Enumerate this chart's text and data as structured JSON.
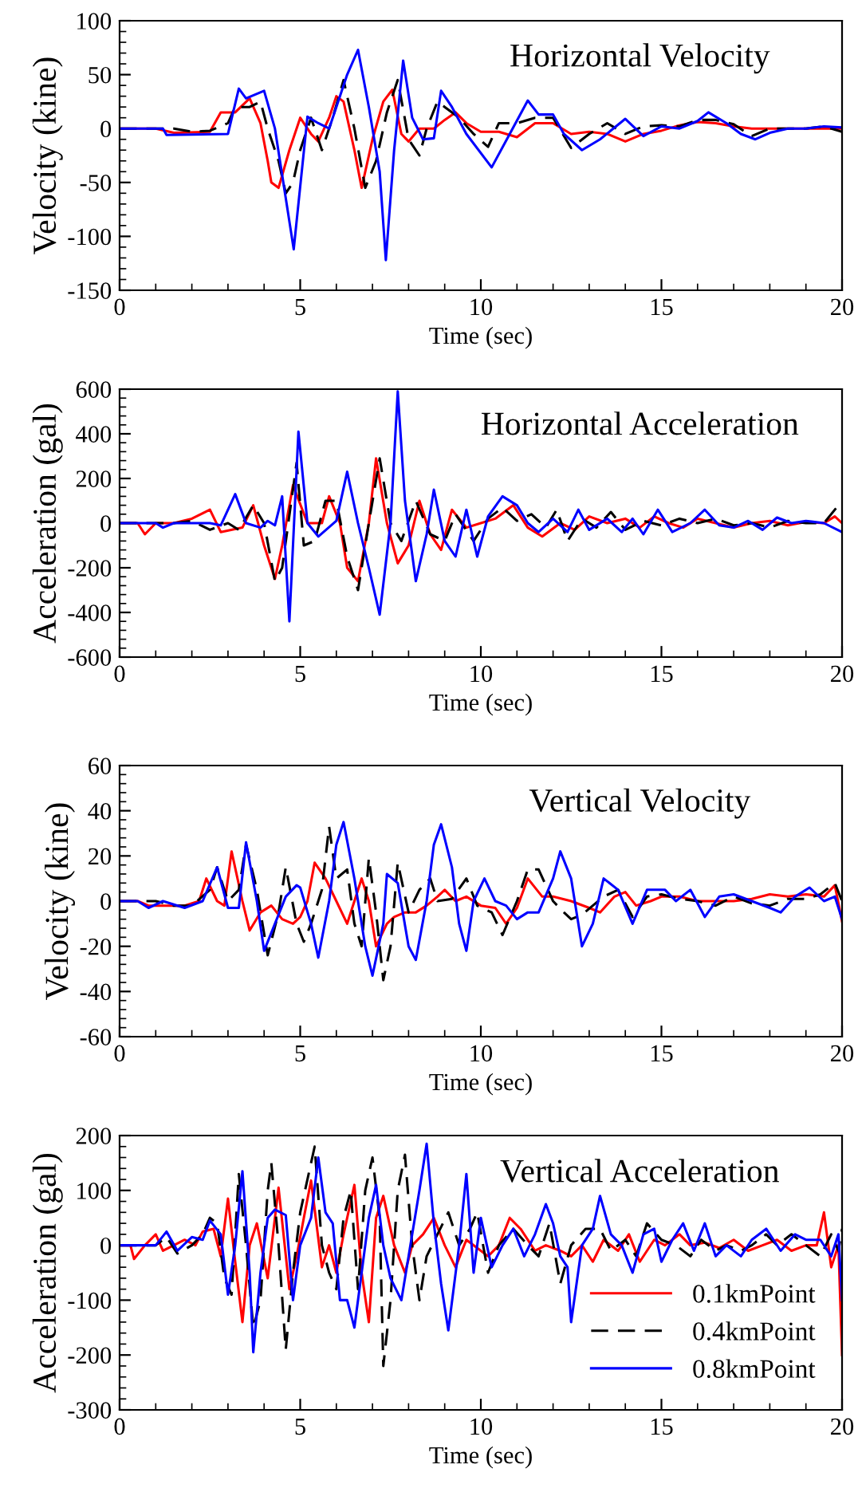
{
  "chart_data": [
    {
      "type": "line",
      "title": "Horizontal Velocity",
      "xlabel": "Time (sec)",
      "ylabel": "Velocity (kine)",
      "xlim": [
        0,
        20
      ],
      "ylim": [
        -150,
        100
      ],
      "xticks": [
        0,
        5,
        10,
        15,
        20
      ],
      "yticks": [
        -150,
        -100,
        -50,
        0,
        50,
        100
      ],
      "legend": false,
      "series": [
        {
          "color": "#ff0000",
          "line_style": "solid",
          "x": [
            0,
            1,
            1.5,
            2.5,
            2.8,
            3.2,
            3.6,
            3.9,
            4.1,
            4.2,
            4.4,
            4.7,
            5.0,
            5.3,
            5.5,
            5.8,
            6.0,
            6.2,
            6.5,
            6.7,
            7.0,
            7.3,
            7.55,
            7.8,
            8.0,
            8.3,
            8.7,
            9.0,
            9.3,
            9.6,
            10,
            10.5,
            11.0,
            11.5,
            12,
            12.5,
            13.0,
            13.5,
            14,
            14.5,
            15,
            15.5,
            16,
            16.5,
            17,
            17.5,
            18,
            19,
            20
          ],
          "values": [
            0,
            0,
            -4,
            -3,
            15,
            15,
            28,
            5,
            -30,
            -50,
            -55,
            -20,
            10,
            -5,
            -12,
            10,
            30,
            25,
            -20,
            -55,
            -10,
            25,
            36,
            -5,
            -12,
            0,
            0,
            8,
            15,
            5,
            -3,
            -3,
            -8,
            5,
            5,
            -5,
            -3,
            -5,
            -12,
            -5,
            -2,
            3,
            6,
            5,
            2,
            0,
            0,
            0,
            0
          ]
        },
        {
          "color": "#000000",
          "line_style": "dashed",
          "x": [
            0,
            1.5,
            2,
            2.5,
            3.0,
            3.2,
            3.6,
            3.9,
            4.1,
            4.4,
            4.6,
            4.8,
            5.0,
            5.3,
            5.6,
            5.9,
            6.2,
            6.5,
            6.8,
            7.1,
            7.4,
            7.7,
            8.0,
            8.3,
            8.5,
            8.8,
            9.0,
            9.4,
            9.8,
            10.2,
            10.5,
            11,
            11.5,
            12.0,
            12.5,
            13,
            13.5,
            14,
            14.5,
            15,
            15.5,
            16,
            16.5,
            17,
            17.5,
            18,
            19,
            19.5,
            20
          ],
          "values": [
            0,
            0,
            -3,
            -2,
            5,
            20,
            20,
            25,
            0,
            -30,
            -60,
            -50,
            -20,
            10,
            -20,
            10,
            45,
            0,
            -55,
            -30,
            15,
            45,
            -10,
            -25,
            0,
            25,
            20,
            10,
            -5,
            -17,
            5,
            5,
            10,
            10,
            -18,
            -5,
            5,
            -5,
            2,
            3,
            2,
            8,
            8,
            4,
            -7,
            0,
            0,
            2,
            -3
          ]
        },
        {
          "color": "#0000ff",
          "line_style": "solid",
          "x": [
            0,
            1.2,
            1.3,
            3.0,
            3.3,
            3.5,
            4.0,
            4.3,
            4.82,
            5.2,
            5.5,
            5.8,
            6.0,
            6.3,
            6.6,
            6.9,
            7.2,
            7.37,
            7.6,
            7.85,
            8.1,
            8.4,
            8.7,
            8.9,
            9.2,
            9.6,
            10.3,
            10.8,
            11.3,
            11.6,
            12.0,
            12.3,
            12.8,
            13.3,
            14.0,
            14.5,
            15,
            15.5,
            16.0,
            16.3,
            16.8,
            17.2,
            17.6,
            18,
            18.5,
            19,
            19.5,
            20
          ],
          "values": [
            0,
            0,
            -6,
            -5,
            37,
            28,
            35,
            0,
            -112,
            11,
            5,
            0,
            20,
            50,
            73,
            20,
            -40,
            -122,
            -20,
            63,
            10,
            -10,
            -9,
            35,
            20,
            -5,
            -36,
            -5,
            26,
            13,
            13,
            -5,
            -20,
            -10,
            9,
            -7,
            2,
            0,
            7,
            15,
            5,
            -5,
            -10,
            -4,
            0,
            0,
            2,
            1
          ]
        }
      ]
    },
    {
      "type": "line",
      "title": "Horizontal Acceleration",
      "xlabel": "Time (sec)",
      "ylabel": "Acceleration (gal)",
      "xlim": [
        0,
        20
      ],
      "ylim": [
        -600,
        600
      ],
      "xticks": [
        0,
        5,
        10,
        15,
        20
      ],
      "yticks": [
        -600,
        -400,
        -200,
        0,
        200,
        400,
        600
      ],
      "legend": false,
      "series": [
        {
          "color": "#ff0000",
          "line_style": "solid",
          "x": [
            0,
            0.5,
            0.7,
            1,
            1.5,
            2.0,
            2.5,
            2.8,
            3.4,
            3.7,
            4.0,
            4.3,
            4.5,
            4.8,
            5.2,
            5.6,
            5.8,
            6.1,
            6.3,
            6.6,
            6.9,
            7.1,
            7.4,
            7.7,
            8.0,
            8.3,
            8.6,
            8.9,
            9.2,
            9.6,
            10,
            10.4,
            10.9,
            11.3,
            11.7,
            12.2,
            12.6,
            13.0,
            13.5,
            14.0,
            14.4,
            14.8,
            15.2,
            15.6,
            16,
            16.5,
            17,
            17.5,
            18,
            18.5,
            19,
            19.5,
            19.8,
            20
          ],
          "values": [
            0,
            0,
            -50,
            0,
            0,
            20,
            60,
            -40,
            -20,
            80,
            -100,
            -250,
            -100,
            170,
            0,
            0,
            120,
            0,
            -200,
            -260,
            0,
            290,
            0,
            -180,
            -100,
            100,
            -50,
            -120,
            60,
            -20,
            0,
            20,
            80,
            -20,
            -60,
            0,
            -30,
            30,
            0,
            20,
            -20,
            30,
            0,
            -20,
            20,
            0,
            -20,
            0,
            10,
            -10,
            5,
            0,
            30,
            0
          ]
        },
        {
          "color": "#000000",
          "line_style": "dashed",
          "x": [
            0,
            1.5,
            2,
            2.5,
            3,
            3.3,
            3.7,
            4.0,
            4.3,
            4.5,
            4.9,
            5.1,
            5.4,
            5.7,
            6.0,
            6.3,
            6.6,
            6.9,
            7.2,
            7.5,
            7.8,
            8.2,
            8.6,
            9,
            9.3,
            9.8,
            10.2,
            10.6,
            11.0,
            11.4,
            11.8,
            12.1,
            12.4,
            12.8,
            13.2,
            13.6,
            14,
            14.5,
            15,
            15.5,
            16,
            16.5,
            17,
            17.5,
            18,
            18.5,
            19,
            19.5,
            20
          ],
          "values": [
            0,
            0,
            10,
            -30,
            0,
            -30,
            80,
            0,
            -260,
            -200,
            270,
            -100,
            -80,
            100,
            100,
            -150,
            -300,
            0,
            290,
            0,
            -80,
            100,
            -50,
            -80,
            40,
            -80,
            20,
            70,
            10,
            40,
            -20,
            60,
            -80,
            20,
            -20,
            50,
            -30,
            10,
            -10,
            20,
            0,
            20,
            -10,
            0,
            -20,
            10,
            0,
            0,
            100
          ]
        },
        {
          "color": "#0000ff",
          "line_style": "solid",
          "x": [
            0,
            1,
            1.2,
            1.5,
            2.5,
            2.8,
            3.2,
            3.5,
            3.9,
            4.1,
            4.3,
            4.5,
            4.7,
            4.95,
            5.2,
            5.5,
            6.0,
            6.3,
            6.6,
            6.9,
            7.2,
            7.5,
            7.7,
            7.9,
            8.2,
            8.5,
            8.7,
            9.0,
            9.3,
            9.6,
            9.9,
            10.2,
            10.6,
            11.0,
            11.3,
            11.6,
            12,
            12.4,
            12.7,
            13.0,
            13.5,
            13.9,
            14.2,
            14.5,
            14.9,
            15.3,
            15.8,
            16.2,
            16.6,
            17,
            17.4,
            17.8,
            18.2,
            18.6,
            19,
            19.5,
            20
          ],
          "values": [
            0,
            0,
            -20,
            0,
            0,
            -10,
            130,
            0,
            -20,
            10,
            -10,
            120,
            -440,
            410,
            0,
            -60,
            10,
            230,
            0,
            -200,
            -410,
            0,
            590,
            100,
            -260,
            -50,
            150,
            -80,
            -150,
            60,
            -150,
            30,
            120,
            80,
            0,
            -40,
            20,
            -40,
            60,
            -30,
            20,
            -40,
            20,
            -50,
            60,
            -40,
            0,
            60,
            -10,
            -20,
            10,
            -30,
            25,
            0,
            10,
            0,
            -40
          ]
        }
      ]
    },
    {
      "type": "line",
      "title": "Vertical Velocity",
      "xlabel": "Time (sec)",
      "ylabel": "Velocity (kine)",
      "xlim": [
        0,
        20
      ],
      "ylim": [
        -60,
        60
      ],
      "xticks": [
        0,
        5,
        10,
        15,
        20
      ],
      "yticks": [
        -60,
        -40,
        -20,
        0,
        20,
        40,
        60
      ],
      "legend": false,
      "series": [
        {
          "color": "#ff0000",
          "line_style": "solid",
          "x": [
            0,
            0.5,
            0.8,
            1.2,
            1.8,
            2.2,
            2.4,
            2.7,
            2.9,
            3.1,
            3.4,
            3.6,
            3.9,
            4.2,
            4.5,
            4.8,
            5.0,
            5.2,
            5.4,
            5.7,
            6.0,
            6.3,
            6.5,
            6.7,
            6.9,
            7.1,
            7.4,
            7.6,
            7.9,
            8.2,
            8.5,
            8.8,
            9.0,
            9.3,
            9.6,
            10,
            10.4,
            10.7,
            11.0,
            11.3,
            11.7,
            12.0,
            12.5,
            13.0,
            13.3,
            13.7,
            14.0,
            14.3,
            14.7,
            15.0,
            15.5,
            16,
            16.5,
            17,
            17.5,
            18,
            18.5,
            19,
            19.5,
            19.8,
            20
          ],
          "values": [
            0,
            0,
            -2,
            -2,
            -2,
            0,
            10,
            0,
            -2,
            22,
            0,
            -13,
            -5,
            -2,
            -8,
            -10,
            -7,
            0,
            17,
            10,
            0,
            -10,
            0,
            10,
            0,
            -20,
            -10,
            -7,
            -5,
            -5,
            -2,
            2,
            5,
            0,
            2,
            -2,
            -3,
            -10,
            -3,
            10,
            2,
            2,
            0,
            -3,
            -5,
            2,
            4,
            -2,
            0,
            2,
            2,
            0,
            0,
            0,
            1,
            3,
            2,
            3,
            2,
            7,
            -9
          ]
        },
        {
          "color": "#000000",
          "line_style": "dashed",
          "x": [
            0,
            1,
            1.5,
            2,
            2.5,
            2.7,
            3.0,
            3.3,
            3.5,
            3.8,
            4.1,
            4.4,
            4.6,
            4.9,
            5.1,
            5.3,
            5.6,
            5.8,
            6.0,
            6.3,
            6.5,
            6.7,
            6.9,
            7.1,
            7.3,
            7.5,
            7.7,
            8.0,
            8.3,
            8.6,
            8.8,
            9.2,
            9.6,
            9.9,
            10.3,
            10.6,
            11.0,
            11.3,
            11.6,
            12.0,
            12.3,
            12.5,
            12.8,
            13.1,
            13.4,
            13.8,
            14.2,
            14.6,
            15.0,
            15.5,
            16.0,
            16.5,
            17,
            17.5,
            18,
            18.5,
            19,
            19.4,
            19.8,
            20
          ],
          "values": [
            0,
            0,
            -2,
            -2,
            5,
            15,
            0,
            5,
            25,
            5,
            -24,
            -5,
            15,
            -10,
            -18,
            -10,
            5,
            33,
            10,
            14,
            -10,
            -20,
            19,
            -5,
            -35,
            -20,
            17,
            -5,
            5,
            10,
            0,
            1,
            10,
            -2,
            -5,
            -15,
            0,
            14,
            14,
            0,
            -5,
            -8,
            -6,
            -2,
            2,
            5,
            -7,
            2,
            3,
            1,
            0,
            -2,
            2,
            -1,
            -2,
            1,
            1,
            3,
            8,
            0
          ]
        },
        {
          "color": "#0000ff",
          "line_style": "solid",
          "x": [
            0,
            0.5,
            0.8,
            1.2,
            1.8,
            2.3,
            2.7,
            3.0,
            3.3,
            3.5,
            3.8,
            4.0,
            4.3,
            4.6,
            4.9,
            5.0,
            5.3,
            5.5,
            5.8,
            6.0,
            6.2,
            6.5,
            6.8,
            7.0,
            7.3,
            7.4,
            7.7,
            8.0,
            8.2,
            8.5,
            8.7,
            8.9,
            9.2,
            9.4,
            9.6,
            9.8,
            10.1,
            10.4,
            10.7,
            11.0,
            11.3,
            11.6,
            12.0,
            12.2,
            12.5,
            12.8,
            13.1,
            13.4,
            13.8,
            14.2,
            14.6,
            15.1,
            15.4,
            15.8,
            16.2,
            16.6,
            17,
            17.5,
            18,
            18.3,
            18.7,
            19.1,
            19.5,
            19.8,
            20
          ],
          "values": [
            0,
            0,
            -3,
            0,
            -3,
            0,
            15,
            -3,
            -3,
            26,
            0,
            -22,
            -10,
            2,
            7,
            6,
            -10,
            -25,
            0,
            25,
            35,
            10,
            -20,
            -33,
            -10,
            12,
            8,
            -20,
            -26,
            0,
            25,
            34,
            15,
            -10,
            -22,
            0,
            10,
            0,
            -2,
            -8,
            -5,
            -5,
            10,
            22,
            10,
            -20,
            -10,
            10,
            5,
            -10,
            5,
            5,
            0,
            5,
            -7,
            2,
            3,
            0,
            -3,
            -5,
            2,
            6,
            0,
            2,
            -8
          ]
        }
      ]
    },
    {
      "type": "line",
      "title": "Vertical Acceleration",
      "xlabel": "Time (sec)",
      "ylabel": "Acceleration (gal)",
      "xlim": [
        0,
        20
      ],
      "ylim": [
        -300,
        200
      ],
      "xticks": [
        0,
        5,
        10,
        15,
        20
      ],
      "yticks": [
        -300,
        -200,
        -100,
        0,
        100,
        200
      ],
      "legend": "bottom right",
      "series": [
        {
          "name": "0.1kmPoint",
          "color": "#ff0000",
          "line_style": "solid",
          "x": [
            0,
            0.3,
            0.4,
            0.7,
            1.0,
            1.2,
            1.5,
            1.8,
            2.1,
            2.3,
            2.6,
            2.8,
            3.0,
            3.2,
            3.4,
            3.6,
            3.8,
            4.1,
            4.4,
            4.7,
            4.9,
            5.1,
            5.3,
            5.6,
            5.8,
            6.0,
            6.2,
            6.5,
            6.7,
            6.9,
            7.1,
            7.3,
            7.6,
            7.9,
            8.1,
            8.4,
            8.7,
            9.0,
            9.3,
            9.6,
            9.9,
            10.2,
            10.5,
            10.8,
            11.1,
            11.5,
            11.8,
            12.2,
            12.5,
            12.8,
            13.1,
            13.4,
            13.8,
            14.1,
            14.4,
            14.8,
            15.1,
            15.5,
            15.8,
            16.2,
            16.6,
            17,
            17.4,
            17.8,
            18.2,
            18.6,
            19.0,
            19.3,
            19.5,
            19.7,
            19.9,
            20
          ],
          "values": [
            0,
            0,
            -25,
            0,
            20,
            -10,
            0,
            10,
            0,
            25,
            30,
            -20,
            85,
            -30,
            -140,
            0,
            40,
            -60,
            105,
            -80,
            -20,
            50,
            118,
            -40,
            0,
            -50,
            20,
            110,
            -50,
            -140,
            50,
            90,
            0,
            -50,
            0,
            20,
            50,
            0,
            -40,
            10,
            -5,
            -20,
            0,
            50,
            30,
            -10,
            0,
            -10,
            -20,
            0,
            -30,
            10,
            -10,
            20,
            -30,
            10,
            0,
            20,
            0,
            5,
            -5,
            10,
            -10,
            0,
            10,
            -10,
            0,
            0,
            60,
            -40,
            0,
            -200
          ]
        },
        {
          "name": "0.4kmPoint",
          "color": "#000000",
          "line_style": "dashed",
          "x": [
            0,
            1.0,
            1.3,
            1.6,
            2.0,
            2.3,
            2.5,
            2.7,
            2.9,
            3.1,
            3.3,
            3.5,
            3.7,
            3.9,
            4.1,
            4.2,
            4.4,
            4.6,
            4.8,
            5.0,
            5.2,
            5.4,
            5.6,
            5.8,
            6.0,
            6.2,
            6.4,
            6.6,
            6.8,
            7.0,
            7.2,
            7.3,
            7.5,
            7.7,
            7.9,
            8.1,
            8.3,
            8.5,
            8.8,
            9.1,
            9.4,
            9.7,
            9.9,
            10.2,
            10.5,
            10.9,
            11.3,
            11.6,
            11.9,
            12.2,
            12.5,
            12.9,
            13.3,
            13.6,
            14.0,
            14.3,
            14.6,
            15.0,
            15.4,
            15.8,
            16.1,
            16.5,
            16.8,
            17.2,
            17.5,
            17.9,
            18.2,
            18.6,
            19.0,
            19.4,
            19.7,
            19.9,
            20
          ],
          "values": [
            0,
            0,
            15,
            -15,
            0,
            20,
            50,
            40,
            -60,
            -90,
            130,
            0,
            -150,
            -100,
            100,
            150,
            0,
            -190,
            -50,
            60,
            120,
            180,
            0,
            -50,
            -80,
            50,
            100,
            -80,
            100,
            160,
            50,
            -220,
            -100,
            100,
            165,
            0,
            -100,
            -20,
            20,
            60,
            0,
            30,
            60,
            -50,
            0,
            30,
            0,
            -20,
            40,
            -70,
            0,
            30,
            30,
            -10,
            10,
            -20,
            40,
            10,
            0,
            -20,
            10,
            -10,
            0,
            -10,
            0,
            20,
            0,
            20,
            0,
            -20,
            20,
            -10,
            30
          ]
        },
        {
          "name": "0.8kmPoint",
          "color": "#0000ff",
          "line_style": "solid",
          "x": [
            0,
            1,
            1.3,
            1.6,
            2.0,
            2.3,
            2.5,
            2.8,
            3.0,
            3.2,
            3.4,
            3.6,
            3.7,
            3.9,
            4.1,
            4.3,
            4.6,
            4.8,
            5.0,
            5.3,
            5.5,
            5.7,
            5.9,
            6.1,
            6.3,
            6.5,
            6.7,
            6.9,
            7.1,
            7.3,
            7.5,
            7.8,
            8.1,
            8.3,
            8.5,
            8.7,
            8.9,
            9.1,
            9.4,
            9.6,
            9.8,
            10.0,
            10.3,
            10.6,
            10.9,
            11.2,
            11.5,
            11.8,
            12.0,
            12.2,
            12.4,
            12.5,
            12.8,
            13.1,
            13.3,
            13.6,
            13.9,
            14.2,
            14.5,
            14.8,
            15.0,
            15.3,
            15.6,
            15.9,
            16.2,
            16.5,
            16.8,
            17.2,
            17.5,
            17.9,
            18.3,
            18.7,
            19.0,
            19.4,
            19.7,
            19.9,
            20
          ],
          "values": [
            0,
            0,
            25,
            -10,
            15,
            10,
            45,
            20,
            -90,
            0,
            135,
            -50,
            -195,
            -50,
            50,
            65,
            55,
            -100,
            0,
            50,
            160,
            60,
            40,
            -100,
            -100,
            -150,
            -50,
            50,
            110,
            0,
            -60,
            -100,
            20,
            100,
            185,
            40,
            -70,
            -155,
            0,
            130,
            -50,
            50,
            -40,
            0,
            30,
            -20,
            20,
            75,
            40,
            -20,
            -40,
            -140,
            0,
            30,
            90,
            20,
            0,
            -50,
            20,
            30,
            -30,
            10,
            40,
            -10,
            40,
            -20,
            0,
            -20,
            10,
            30,
            -10,
            20,
            10,
            10,
            -20,
            20,
            -100
          ]
        }
      ]
    }
  ]
}
